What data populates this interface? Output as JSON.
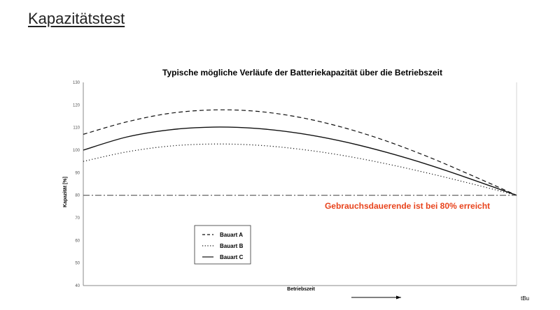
{
  "page": {
    "title": "Kapazitätstest"
  },
  "chart_data": {
    "type": "line",
    "title": "Typische mögliche Verläufe der Batteriekapazität über die Betriebszeit",
    "xlabel": "Betriebszeit",
    "ylabel": "Kapazität [%]",
    "x_end_label": "tBu",
    "ylim": [
      40,
      130
    ],
    "yticks": [
      40,
      50,
      60,
      70,
      80,
      90,
      100,
      110,
      120,
      130
    ],
    "xlim": [
      0,
      1
    ],
    "grid": false,
    "legend_position": "bottom-left",
    "series": [
      {
        "name": "Bauart A",
        "style": "dashed",
        "x": [
          0,
          0.1,
          0.2,
          0.3,
          0.4,
          0.5,
          0.6,
          0.7,
          0.8,
          0.9,
          1.0
        ],
        "y": [
          107,
          112.5,
          116.3,
          117.8,
          117.2,
          114.5,
          110.0,
          104.0,
          96.7,
          88.5,
          80
        ]
      },
      {
        "name": "Bauart B",
        "style": "dotted",
        "x": [
          0,
          0.1,
          0.2,
          0.3,
          0.4,
          0.5,
          0.6,
          0.7,
          0.8,
          0.9,
          1.0
        ],
        "y": [
          95,
          99.2,
          101.8,
          102.7,
          102.2,
          100.4,
          97.6,
          93.9,
          89.6,
          84.9,
          80
        ]
      },
      {
        "name": "Bauart C",
        "style": "solid",
        "x": [
          0,
          0.1,
          0.2,
          0.3,
          0.4,
          0.5,
          0.6,
          0.7,
          0.8,
          0.9,
          1.0
        ],
        "y": [
          100,
          105.8,
          109.0,
          110.2,
          109.6,
          107.4,
          103.8,
          99.0,
          93.3,
          86.8,
          80
        ]
      }
    ],
    "threshold": {
      "value": 80,
      "style": "dash-dot",
      "label": "Gebrauchsdauerende ist bei 80% erreicht",
      "label_color": "#e8431c"
    },
    "arrow_color": "#000000"
  }
}
